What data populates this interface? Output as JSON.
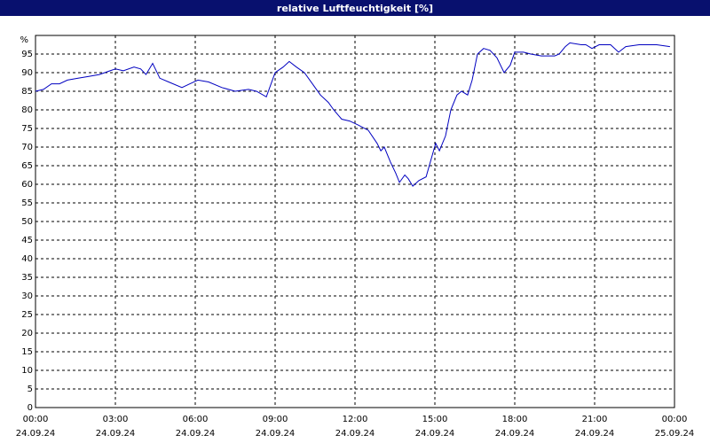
{
  "chart_data": {
    "type": "line",
    "title": "relative Luftfeuchtigkeit [%]",
    "ylabel": "%",
    "x": [
      0,
      0.3,
      0.6,
      0.9,
      1.2,
      1.6,
      2.0,
      2.4,
      2.8,
      3.0,
      3.3,
      3.7,
      3.95,
      4.15,
      4.4,
      4.67,
      5.0,
      5.5,
      5.8,
      6.1,
      6.5,
      7.0,
      7.5,
      8.0,
      8.3,
      8.67,
      9.0,
      9.3,
      9.53,
      9.8,
      10.1,
      10.4,
      10.7,
      11.0,
      11.2,
      11.5,
      11.8,
      12.1,
      12.5,
      12.83,
      12.97,
      13.1,
      13.33,
      13.53,
      13.67,
      13.87,
      14.0,
      14.17,
      14.4,
      14.67,
      15.03,
      15.17,
      15.4,
      15.6,
      15.83,
      16,
      16.23,
      16.4,
      16.6,
      16.83,
      17.07,
      17.33,
      17.6,
      17.83,
      18,
      18.33,
      18.6,
      19,
      19.5,
      19.67,
      19.9,
      20.07,
      20.5,
      20.67,
      20.9,
      21.17,
      21.6,
      21.9,
      22.17,
      22.67,
      23.33,
      23.83
    ],
    "series": [
      {
        "name": "relative Luftfeuchtigkeit",
        "color": "#0000c0",
        "values": [
          85,
          85.5,
          87,
          87,
          88,
          88.5,
          89,
          89.5,
          90.5,
          91,
          90.5,
          91.5,
          91,
          89.5,
          92.5,
          88.5,
          87.5,
          86,
          87,
          88,
          87.5,
          86,
          85,
          85.5,
          85,
          83.5,
          90,
          91.5,
          93,
          91.5,
          90,
          87,
          84,
          82,
          80,
          77.5,
          77,
          76,
          74.5,
          71,
          69,
          70,
          66,
          63,
          60.5,
          62.5,
          61.5,
          59.5,
          61,
          62,
          71,
          69,
          73,
          80,
          84,
          85,
          84,
          88,
          95,
          96.5,
          96,
          94,
          90,
          92,
          95.5,
          95.5,
          95,
          94.5,
          94.5,
          95,
          97,
          98,
          97.5,
          97.5,
          96.5,
          97.5,
          97.5,
          95.5,
          97,
          97.5,
          97.5,
          97
        ]
      }
    ],
    "xlim": [
      0,
      24
    ],
    "ylim": [
      0,
      100
    ],
    "xticks": [
      {
        "value": 0,
        "label": "00:00",
        "date": "24.09.24"
      },
      {
        "value": 3,
        "label": "03:00",
        "date": "24.09.24"
      },
      {
        "value": 6,
        "label": "06:00",
        "date": "24.09.24"
      },
      {
        "value": 9,
        "label": "09:00",
        "date": "24.09.24"
      },
      {
        "value": 12,
        "label": "12:00",
        "date": "24.09.24"
      },
      {
        "value": 15,
        "label": "15:00",
        "date": "24.09.24"
      },
      {
        "value": 18,
        "label": "18:00",
        "date": "24.09.24"
      },
      {
        "value": 21,
        "label": "21:00",
        "date": "24.09.24"
      },
      {
        "value": 24,
        "label": "00:00",
        "date": "25.09.24"
      }
    ],
    "yticks": [
      0,
      5,
      10,
      15,
      20,
      25,
      30,
      35,
      40,
      45,
      50,
      55,
      60,
      65,
      70,
      75,
      80,
      85,
      90,
      95
    ],
    "grid": true
  }
}
